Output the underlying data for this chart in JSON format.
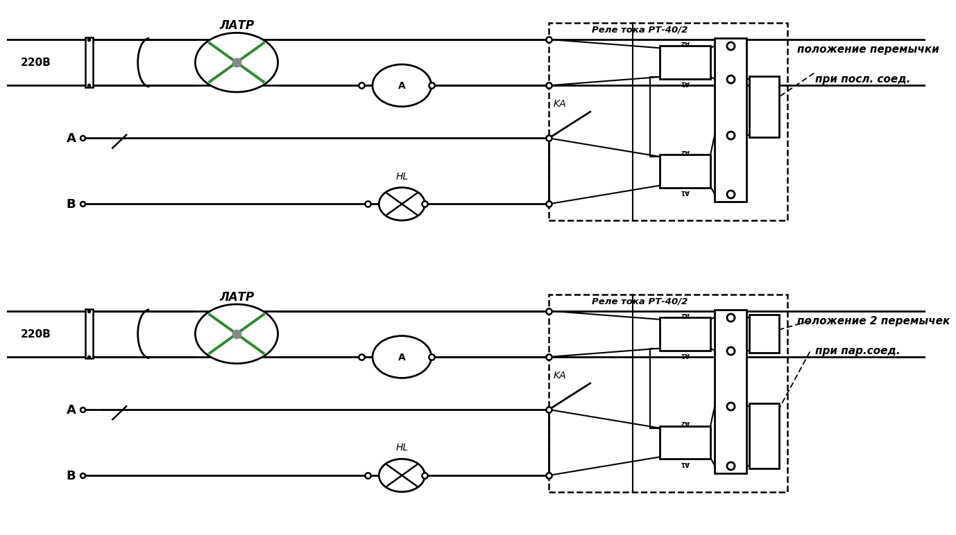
{
  "bg": "#ffffff",
  "lc": "#000000",
  "gc": "#2d8a2d",
  "gray": "#888888",
  "lw": 2.0,
  "lw_thin": 1.5,
  "v220": "220В",
  "latr": "ЛАТР",
  "amm": "А",
  "Apt": "A",
  "Bpt": "B",
  "hl": "HL",
  "ka": "KА",
  "relay": "Реле тока РТ-40/2",
  "n1a": "положение перемычки",
  "n1b": "при посл. соед.",
  "n2a": "положение 2 перемычек",
  "n2b": "при пар.соед.",
  "figw": 13.51,
  "figh": 7.68,
  "dpi": 100
}
